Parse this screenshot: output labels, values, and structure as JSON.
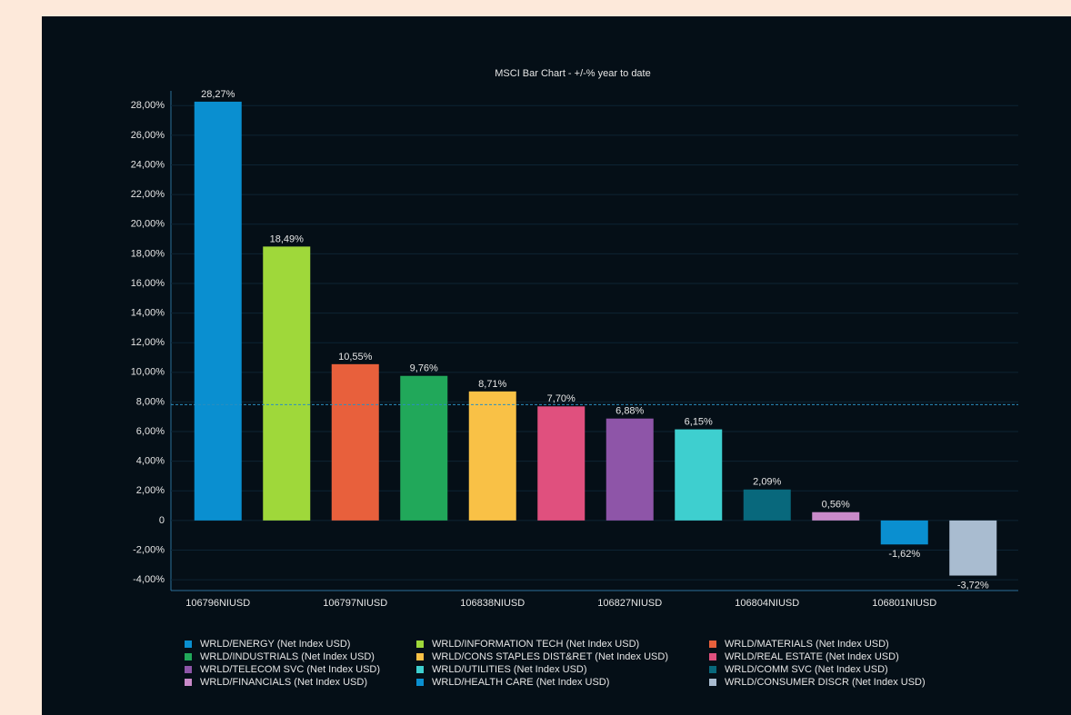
{
  "chart_data": {
    "type": "bar",
    "title": "MSCI Bar Chart - +/-% year to date",
    "categories": [
      "106796NIUSD",
      null,
      "106797NIUSD",
      null,
      "106838NIUSD",
      null,
      "106827NIUSD",
      null,
      "106804NIUSD",
      null,
      "106801NIUSD",
      null
    ],
    "values": [
      28.27,
      18.49,
      10.55,
      9.76,
      8.71,
      7.7,
      6.88,
      6.15,
      2.09,
      0.56,
      -1.62,
      -3.72
    ],
    "value_labels": [
      "28,27%",
      "18,49%",
      "10,55%",
      "9,76%",
      "8,71%",
      "7,70%",
      "6,88%",
      "6,15%",
      "2,09%",
      "0,56%",
      "-1,62%",
      "-3,72%"
    ],
    "colors": [
      "#0a8fd0",
      "#9fd83a",
      "#e8603c",
      "#21a85a",
      "#f9c146",
      "#e0507e",
      "#8e55a8",
      "#3ecfcf",
      "#08687c",
      "#c98ac9",
      "#0a8fd0",
      "#a9bcd0"
    ],
    "legend": [
      "WRLD/ENERGY (Net Index USD)",
      "WRLD/INFORMATION TECH (Net Index USD)",
      "WRLD/MATERIALS (Net Index USD)",
      "WRLD/INDUSTRIALS (Net Index USD)",
      "WRLD/CONS STAPLES DIST&RET (Net Index USD)",
      "WRLD/REAL ESTATE (Net Index USD)",
      "WRLD/TELECOM SVC (Net Index USD)",
      "WRLD/UTILITIES (Net Index USD)",
      "WRLD/COMM SVC (Net Index USD)",
      "WRLD/FINANCIALS (Net Index USD)",
      "WRLD/HEALTH CARE (Net Index USD)",
      "WRLD/CONSUMER DISCR (Net Index USD)"
    ],
    "reference_line": 7.82,
    "ylim": [
      -4.73,
      29
    ],
    "yticks": [
      {
        "value": -4,
        "label": "-4,00%"
      },
      {
        "value": -2,
        "label": "-2,00%"
      },
      0,
      {
        "value": 2,
        "label": "2,00%"
      },
      {
        "value": 4,
        "label": "4,00%"
      },
      {
        "value": 6,
        "label": "6,00%"
      },
      {
        "value": 8,
        "label": "8,00%"
      },
      {
        "value": 10,
        "label": "10,00%"
      },
      {
        "value": 12,
        "label": "12,00%"
      },
      {
        "value": 14,
        "label": "14,00%"
      },
      {
        "value": 16,
        "label": "16,00%"
      },
      {
        "value": 18,
        "label": "18,00%"
      },
      {
        "value": 20,
        "label": "20,00%"
      },
      {
        "value": 22,
        "label": "22,00%"
      },
      {
        "value": 24,
        "label": "24,00%"
      },
      {
        "value": 26,
        "label": "26,00%"
      },
      {
        "value": 28,
        "label": "28,00%"
      }
    ],
    "grid": true
  }
}
